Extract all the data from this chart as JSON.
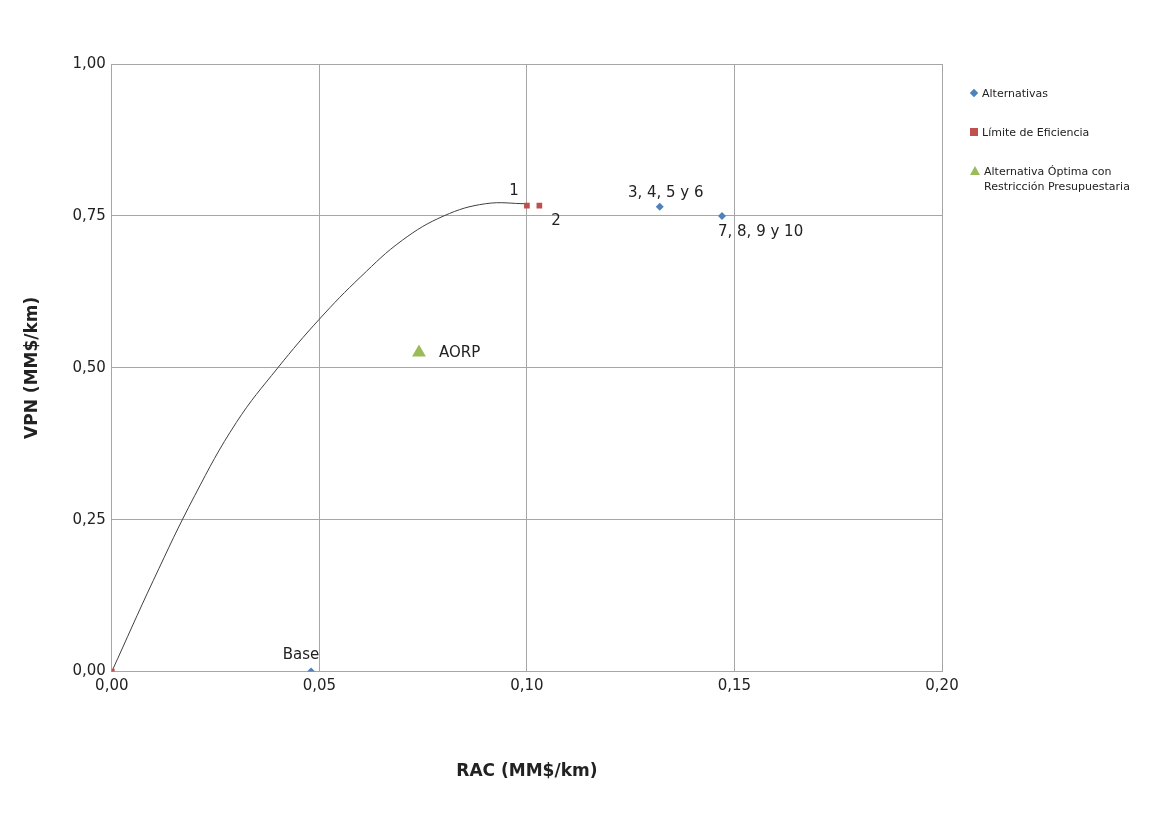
{
  "chart_data": {
    "type": "scatter",
    "xlabel": "RAC (MM$/km)",
    "ylabel": "VPN (MM$/km)",
    "xlim": [
      0,
      0.2
    ],
    "ylim": [
      0,
      1
    ],
    "xticks": [
      {
        "value": 0,
        "label": "0,00"
      },
      {
        "value": 0.05,
        "label": "0,05"
      },
      {
        "value": 0.1,
        "label": "0,10"
      },
      {
        "value": 0.15,
        "label": "0,15"
      },
      {
        "value": 0.2,
        "label": "0,20"
      }
    ],
    "yticks": [
      {
        "value": 0,
        "label": "0,00"
      },
      {
        "value": 0.25,
        "label": "0,25"
      },
      {
        "value": 0.5,
        "label": "0,50"
      },
      {
        "value": 0.75,
        "label": "0,75"
      },
      {
        "value": 1,
        "label": "1,00"
      }
    ],
    "grid": true,
    "legend": "right",
    "series": [
      {
        "type": "line",
        "color": "#404040",
        "marker": "none",
        "x": [
          0,
          0.01,
          0.02,
          0.03,
          0.04,
          0.05,
          0.06,
          0.07,
          0.08,
          0.09,
          0.1
        ],
        "values": [
          0,
          0.15,
          0.29,
          0.41,
          0.5,
          0.58,
          0.65,
          0.71,
          0.75,
          0.77,
          0.77
        ]
      },
      {
        "name": "Alternativas",
        "color": "#4f81bd",
        "marker": "diamond",
        "x": [
          0.048,
          0.132,
          0.147
        ],
        "values": [
          0,
          0.765,
          0.75
        ]
      },
      {
        "name": "Límite de Eficiencia",
        "color": "#c0504d",
        "marker": "square",
        "x": [
          0,
          0.1,
          0.103
        ],
        "values": [
          0,
          0.767,
          0.767
        ]
      },
      {
        "name": "Alternativa Óptima con Restricción Presupuestaria",
        "color": "#9bbb59",
        "marker": "triangle",
        "x": [
          0.074
        ],
        "values": [
          0.525
        ]
      }
    ],
    "annotations": [
      {
        "text": "1",
        "x": 0.1,
        "y": 0.767
      },
      {
        "text": "2",
        "x": 0.103,
        "y": 0.767
      },
      {
        "text": "3, 4, 5 y 6",
        "x": 0.132,
        "y": 0.765
      },
      {
        "text": "7, 8, 9 y 10",
        "x": 0.147,
        "y": 0.75
      },
      {
        "text": "Base",
        "x": 0.048,
        "y": 0
      },
      {
        "text": "AORP",
        "x": 0.074,
        "y": 0.525
      }
    ]
  }
}
